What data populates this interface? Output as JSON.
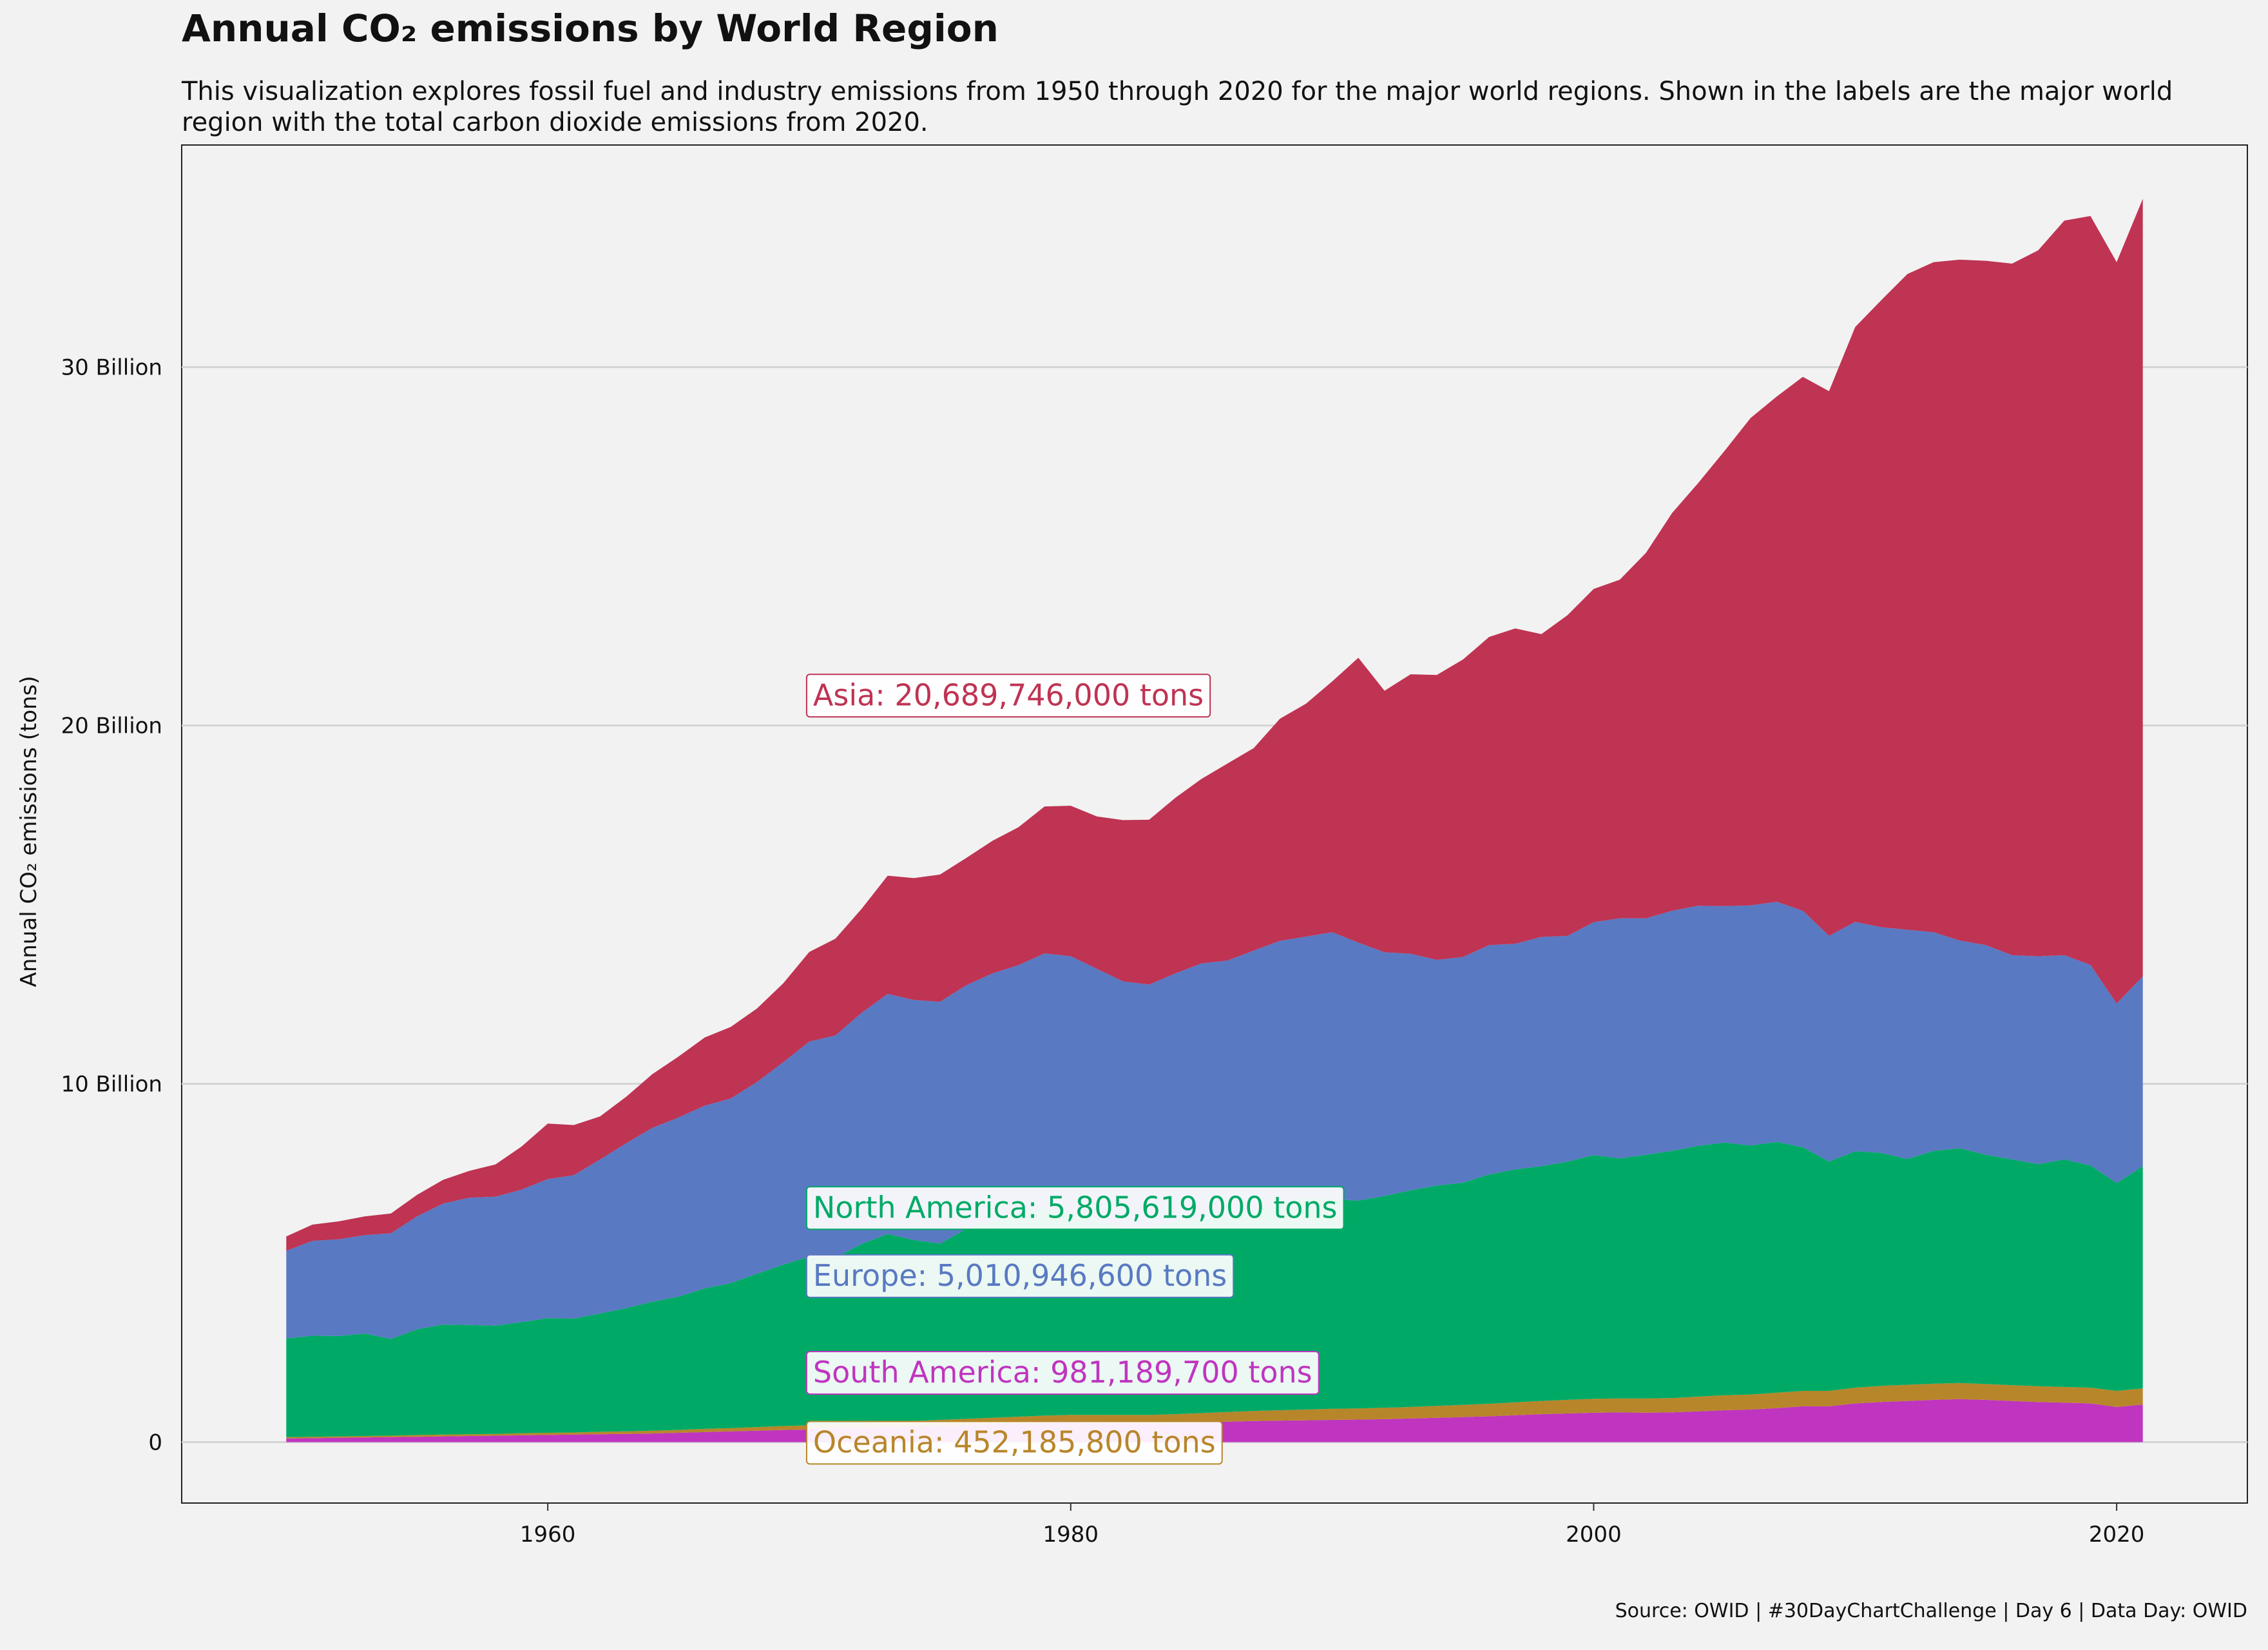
{
  "chart_data": {
    "type": "area",
    "stacked": true,
    "title": "Annual CO₂ emissions by World Region",
    "subtitle": "This visualization explores fossil fuel and industry emissions from 1950 through 2020 for the major world regions. Shown in the labels are the major world region with the total carbon dioxide emissions from 2020.",
    "caption": "Source: OWID | #30DayChartChallenge | Day 6 | Data Day: OWID",
    "xlabel": "",
    "ylabel": "Annual CO₂ emissions (tons)",
    "xlim": [
      1946,
      2025
    ],
    "ylim": [
      -1.7,
      36.2
    ],
    "x_ticks": [
      1960,
      1980,
      2000,
      2020
    ],
    "y_ticks": [
      {
        "value": 0,
        "label": "0"
      },
      {
        "value": 10,
        "label": "10 Billion"
      },
      {
        "value": 20,
        "label": "20 Billion"
      },
      {
        "value": 30,
        "label": "30 Billion"
      }
    ],
    "grid": {
      "horizontal_major": true,
      "vertical": false
    },
    "legend": "none",
    "x": [
      1950,
      1951,
      1952,
      1953,
      1954,
      1955,
      1956,
      1957,
      1958,
      1959,
      1960,
      1961,
      1962,
      1963,
      1964,
      1965,
      1966,
      1967,
      1968,
      1969,
      1970,
      1971,
      1972,
      1973,
      1974,
      1975,
      1976,
      1977,
      1978,
      1979,
      1980,
      1981,
      1982,
      1983,
      1984,
      1985,
      1986,
      1987,
      1988,
      1989,
      1990,
      1991,
      1992,
      1993,
      1994,
      1995,
      1996,
      1997,
      1998,
      1999,
      2000,
      2001,
      2002,
      2003,
      2004,
      2005,
      2006,
      2007,
      2008,
      2009,
      2010,
      2011,
      2012,
      2013,
      2014,
      2015,
      2016,
      2017,
      2018,
      2019,
      2020,
      2021
    ],
    "stack_order_bottom_to_top": [
      "South America",
      "Oceania",
      "North America",
      "Europe",
      "Asia"
    ],
    "series": [
      {
        "name": "South America",
        "color": "#bf35bf",
        "values": [
          0.1,
          0.11,
          0.12,
          0.13,
          0.14,
          0.15,
          0.16,
          0.17,
          0.18,
          0.19,
          0.2,
          0.21,
          0.22,
          0.23,
          0.24,
          0.26,
          0.28,
          0.3,
          0.32,
          0.34,
          0.35,
          0.38,
          0.4,
          0.42,
          0.44,
          0.46,
          0.48,
          0.5,
          0.52,
          0.54,
          0.55,
          0.54,
          0.53,
          0.52,
          0.53,
          0.55,
          0.57,
          0.59,
          0.6,
          0.61,
          0.62,
          0.63,
          0.64,
          0.66,
          0.68,
          0.7,
          0.72,
          0.75,
          0.78,
          0.8,
          0.82,
          0.83,
          0.82,
          0.83,
          0.86,
          0.89,
          0.91,
          0.95,
          1.0,
          1.0,
          1.08,
          1.12,
          1.15,
          1.18,
          1.2,
          1.18,
          1.15,
          1.12,
          1.1,
          1.08,
          0.98,
          1.05
        ]
      },
      {
        "name": "Oceania",
        "color": "#b8862a",
        "values": [
          0.04,
          0.04,
          0.04,
          0.04,
          0.04,
          0.05,
          0.05,
          0.05,
          0.05,
          0.06,
          0.06,
          0.06,
          0.07,
          0.07,
          0.08,
          0.08,
          0.09,
          0.09,
          0.1,
          0.11,
          0.12,
          0.12,
          0.13,
          0.14,
          0.15,
          0.16,
          0.17,
          0.18,
          0.19,
          0.2,
          0.21,
          0.22,
          0.23,
          0.24,
          0.25,
          0.26,
          0.27,
          0.28,
          0.29,
          0.3,
          0.31,
          0.31,
          0.32,
          0.32,
          0.33,
          0.34,
          0.35,
          0.36,
          0.37,
          0.38,
          0.39,
          0.39,
          0.4,
          0.4,
          0.41,
          0.42,
          0.42,
          0.43,
          0.43,
          0.43,
          0.44,
          0.45,
          0.45,
          0.45,
          0.45,
          0.44,
          0.44,
          0.44,
          0.44,
          0.44,
          0.45,
          0.45
        ]
      },
      {
        "name": "North America",
        "color": "#00aa66",
        "values": [
          2.75,
          2.82,
          2.8,
          2.86,
          2.7,
          2.95,
          3.07,
          3.05,
          3.02,
          3.1,
          3.2,
          3.18,
          3.3,
          3.44,
          3.6,
          3.72,
          3.92,
          4.05,
          4.28,
          4.5,
          4.71,
          4.65,
          5.0,
          5.25,
          5.05,
          4.92,
          5.3,
          5.5,
          5.7,
          5.8,
          5.6,
          5.45,
          5.2,
          5.21,
          5.4,
          5.45,
          5.4,
          5.55,
          5.8,
          5.9,
          5.85,
          5.8,
          5.91,
          6.05,
          6.15,
          6.2,
          6.4,
          6.5,
          6.55,
          6.65,
          6.8,
          6.7,
          6.8,
          6.9,
          7.0,
          7.05,
          6.95,
          7.0,
          6.8,
          6.4,
          6.6,
          6.5,
          6.3,
          6.5,
          6.55,
          6.4,
          6.3,
          6.2,
          6.35,
          6.2,
          5.8,
          6.2
        ]
      },
      {
        "name": "Europe",
        "color": "#5979c2",
        "values": [
          2.45,
          2.65,
          2.7,
          2.75,
          2.95,
          3.15,
          3.38,
          3.55,
          3.6,
          3.7,
          3.88,
          4.0,
          4.3,
          4.6,
          4.85,
          5.0,
          5.1,
          5.15,
          5.35,
          5.65,
          6.0,
          6.2,
          6.45,
          6.7,
          6.7,
          6.75,
          6.8,
          6.9,
          6.9,
          7.1,
          7.2,
          7.0,
          6.9,
          6.8,
          6.9,
          7.1,
          7.2,
          7.3,
          7.3,
          7.3,
          7.45,
          7.2,
          6.8,
          6.6,
          6.3,
          6.3,
          6.4,
          6.3,
          6.4,
          6.3,
          6.5,
          6.7,
          6.6,
          6.7,
          6.7,
          6.6,
          6.7,
          6.7,
          6.6,
          6.3,
          6.4,
          6.3,
          6.4,
          6.1,
          5.8,
          5.85,
          5.7,
          5.8,
          5.7,
          5.6,
          5.01,
          5.3
        ]
      },
      {
        "name": "Asia",
        "color": "#bf3353",
        "values": [
          0.4,
          0.45,
          0.5,
          0.52,
          0.55,
          0.6,
          0.66,
          0.75,
          0.9,
          1.2,
          1.55,
          1.4,
          1.2,
          1.3,
          1.5,
          1.7,
          1.9,
          2.0,
          2.05,
          2.2,
          2.5,
          2.7,
          2.9,
          3.3,
          3.4,
          3.55,
          3.55,
          3.7,
          3.85,
          4.1,
          4.2,
          4.25,
          4.5,
          4.6,
          4.9,
          5.15,
          5.5,
          5.65,
          6.2,
          6.5,
          7.0,
          7.95,
          7.3,
          7.8,
          7.95,
          8.3,
          8.6,
          8.8,
          8.45,
          8.95,
          9.3,
          9.45,
          10.2,
          11.1,
          11.8,
          12.7,
          13.6,
          14.1,
          14.9,
          15.2,
          16.6,
          17.5,
          18.3,
          18.7,
          19.0,
          19.1,
          19.3,
          19.7,
          20.5,
          20.9,
          20.69,
          21.7
        ]
      }
    ],
    "annotations": [
      {
        "series": "Asia",
        "text": "Asia: 20,689,746,000 tons",
        "x": 1969.9,
        "y": 20.6
      },
      {
        "series": "North America",
        "text": "North America:  5,805,619,000 tons",
        "x": 1969.9,
        "y": 6.3
      },
      {
        "series": "Europe",
        "text": "Europe:  5,010,946,600 tons",
        "x": 1969.9,
        "y": 4.4
      },
      {
        "series": "South America",
        "text": "South America:    981,189,700 tons",
        "x": 1969.9,
        "y": 1.7
      },
      {
        "series": "Oceania",
        "text": "Oceania:    452,185,800 tons",
        "x": 1969.9,
        "y": -0.25
      }
    ]
  }
}
